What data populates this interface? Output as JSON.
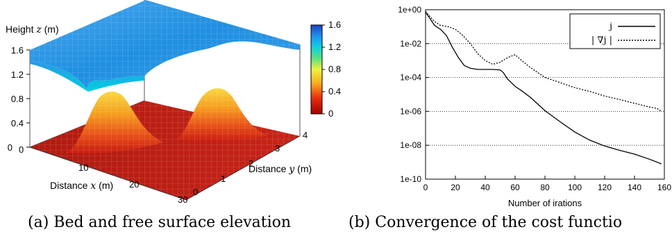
{
  "figure": {
    "caption_a": "(a) Bed and free surface elevation",
    "caption_b": "(b) Convergence of the cost functio"
  },
  "panel_a": {
    "z_label_text": "Height ",
    "z_label_var": "z",
    "z_label_unit": " (m)",
    "z_ticks": [
      "1.6",
      "1.2",
      "0.8",
      "0.4",
      "0"
    ],
    "x_label_text": "Distance ",
    "x_label_var": "x",
    "x_label_unit": " (m)",
    "x_ticks": [
      "0",
      "10",
      "20",
      "30"
    ],
    "y_label_text": "Distance ",
    "y_label_var": "y",
    "y_label_unit": " (m)",
    "y_ticks": [
      "0",
      "1",
      "2",
      "3",
      "4"
    ],
    "colorbar_ticks": [
      "1.6",
      "1.2",
      "0.8",
      "0.4",
      "0"
    ],
    "colors": {
      "surface": "#1f8fe0",
      "bed": "#d42a1a",
      "bump": "#f0a020"
    }
  },
  "chart_data": {
    "type": "line",
    "title": "",
    "xlabel": "Number of irations",
    "ylabel": "",
    "xlim": [
      0,
      160
    ],
    "ylim": [
      1e-10,
      1
    ],
    "y_scale": "log",
    "grid": "horizontal-dotted",
    "legend_position": "top-right",
    "x_ticks": [
      "0",
      "20",
      "40",
      "60",
      "80",
      "100",
      "120",
      "140",
      "160"
    ],
    "y_ticks": [
      "1e+00",
      "1e-02",
      "1e-04",
      "1e-06",
      "1e-08",
      "1e-10"
    ],
    "series": [
      {
        "name": "j",
        "style": "solid",
        "x": [
          0,
          3,
          6,
          10,
          14,
          18,
          22,
          26,
          30,
          35,
          40,
          45,
          50,
          52,
          55,
          60,
          65,
          70,
          75,
          80,
          90,
          100,
          110,
          120,
          130,
          140,
          150,
          158
        ],
        "y": [
          0.7,
          0.3,
          0.12,
          0.07,
          0.03,
          0.006,
          0.0015,
          0.0005,
          0.00035,
          0.0003,
          0.0003,
          0.0003,
          0.00028,
          0.0002,
          8e-05,
          3e-05,
          1.5e-05,
          7e-06,
          2.8e-06,
          1.1e-06,
          2.5e-07,
          6e-08,
          2e-08,
          9e-09,
          5e-09,
          3e-09,
          1.5e-09,
          8e-10
        ]
      },
      {
        "name": "| ∇j |",
        "style": "dotted",
        "x": [
          0,
          3,
          6,
          10,
          15,
          20,
          25,
          30,
          35,
          40,
          45,
          50,
          55,
          60,
          65,
          70,
          75,
          80,
          90,
          100,
          110,
          120,
          130,
          140,
          150,
          155,
          158
        ],
        "y": [
          0.8,
          0.4,
          0.2,
          0.12,
          0.1,
          0.07,
          0.03,
          0.01,
          0.0025,
          0.001,
          0.0006,
          0.0008,
          0.0015,
          0.0022,
          0.0009,
          0.0004,
          0.0002,
          0.0001,
          5e-05,
          2.5e-05,
          1.5e-05,
          8e-06,
          5e-06,
          3e-06,
          1.8e-06,
          1.5e-06,
          1e-06
        ]
      }
    ]
  }
}
